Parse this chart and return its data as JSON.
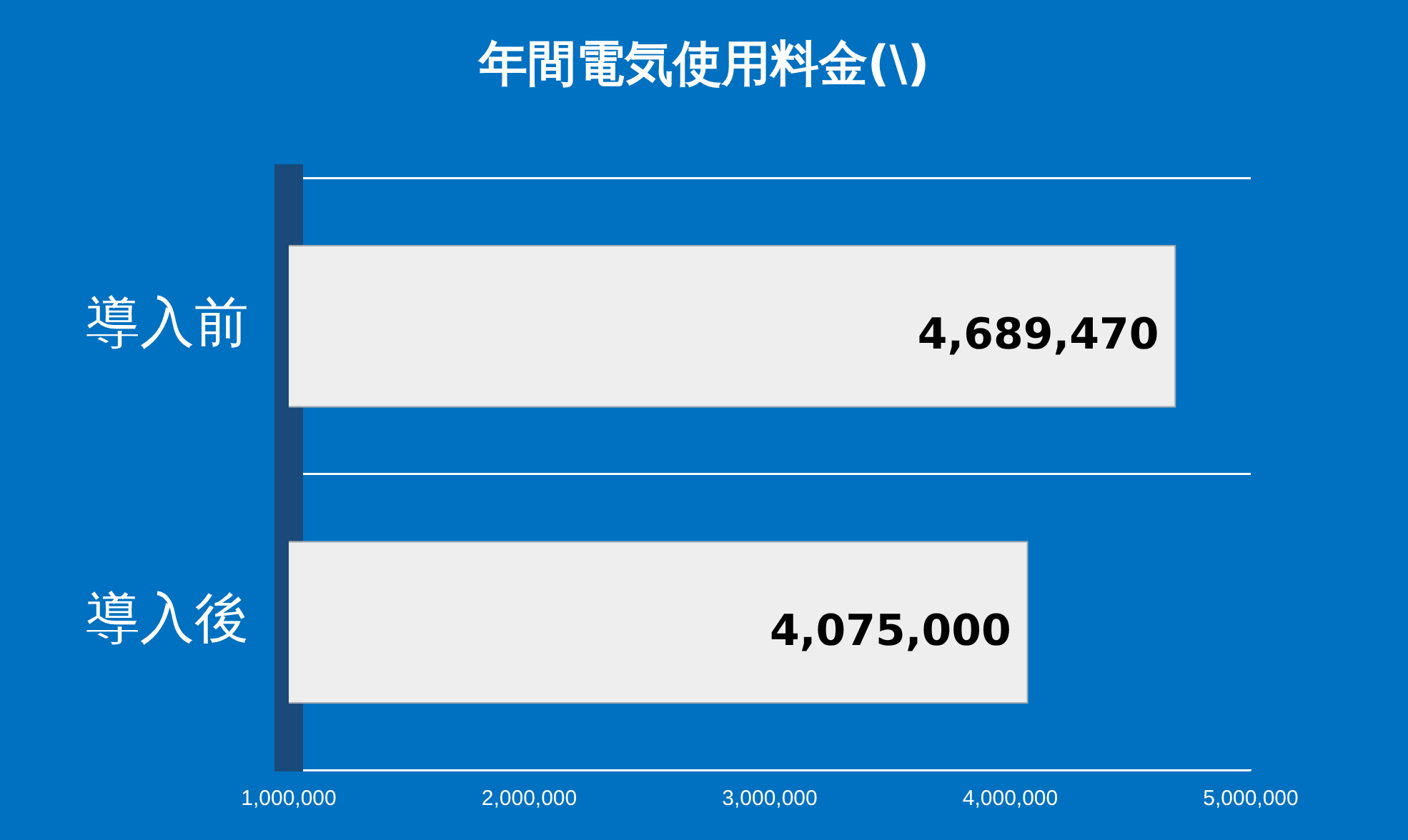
{
  "chart_data": {
    "type": "bar",
    "orientation": "horizontal",
    "title": "年間電気使用料金(\\)",
    "categories": [
      "導入前",
      "導入後"
    ],
    "values": [
      4689470,
      4075000
    ],
    "color": "#eeeeee",
    "xlim": [
      1000000,
      5000000
    ],
    "xticks": [
      {
        "value": 1000000,
        "label": "1,000,000"
      },
      {
        "value": 2000000,
        "label": "2,000,000"
      },
      {
        "value": 3000000,
        "label": "3,000,000"
      },
      {
        "value": 4000000,
        "label": "4,000,000"
      },
      {
        "value": 5000000,
        "label": "5,000,000"
      }
    ],
    "value_labels": [
      "4,689,470",
      "4,075,000"
    ],
    "grid": "y"
  }
}
